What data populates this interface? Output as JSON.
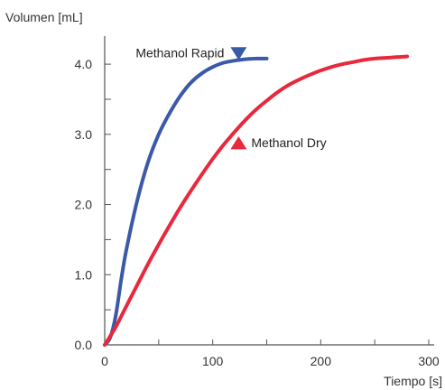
{
  "chart_data": {
    "type": "line",
    "xlabel": "Tiempo [s]",
    "ylabel": "Volumen [mL]",
    "xlim": [
      0,
      300
    ],
    "ylim": [
      0,
      4.4
    ],
    "x_ticks": [
      0,
      100,
      200,
      300
    ],
    "x_tick_labels": [
      "0",
      "100",
      "200",
      "300"
    ],
    "y_ticks": [
      0,
      1,
      2,
      3,
      4
    ],
    "y_tick_labels": [
      "0.0",
      "1.0",
      "2.0",
      "3.0",
      "4.0"
    ],
    "x_minor_step": 50,
    "y_minor_step": 0.5,
    "grid": false,
    "series": [
      {
        "name": "Methanol Rapid",
        "color": "#3a5aa8",
        "marker": "triangle-down",
        "marker_at": [
          124,
          4.15
        ],
        "x": [
          0,
          5,
          10,
          15,
          20,
          30,
          40,
          50,
          60,
          70,
          80,
          90,
          100,
          110,
          120,
          130,
          140,
          150
        ],
        "y": [
          0,
          0.1,
          0.4,
          0.9,
          1.35,
          2.05,
          2.6,
          3.0,
          3.3,
          3.55,
          3.74,
          3.87,
          3.96,
          4.02,
          4.05,
          4.07,
          4.08,
          4.08
        ]
      },
      {
        "name": "Methanol Dry",
        "color": "#e8283c",
        "marker": "triangle-up",
        "marker_at": [
          124,
          2.88
        ],
        "x": [
          0,
          10,
          20,
          30,
          40,
          50,
          60,
          70,
          80,
          90,
          100,
          110,
          120,
          130,
          140,
          150,
          160,
          170,
          180,
          190,
          200,
          210,
          220,
          230,
          240,
          250,
          260,
          270,
          280
        ],
        "y": [
          0,
          0.25,
          0.55,
          0.85,
          1.15,
          1.43,
          1.7,
          1.96,
          2.2,
          2.43,
          2.65,
          2.85,
          3.03,
          3.2,
          3.35,
          3.48,
          3.6,
          3.7,
          3.78,
          3.85,
          3.91,
          3.96,
          4.0,
          4.03,
          4.06,
          4.08,
          4.09,
          4.1,
          4.11
        ]
      }
    ]
  }
}
